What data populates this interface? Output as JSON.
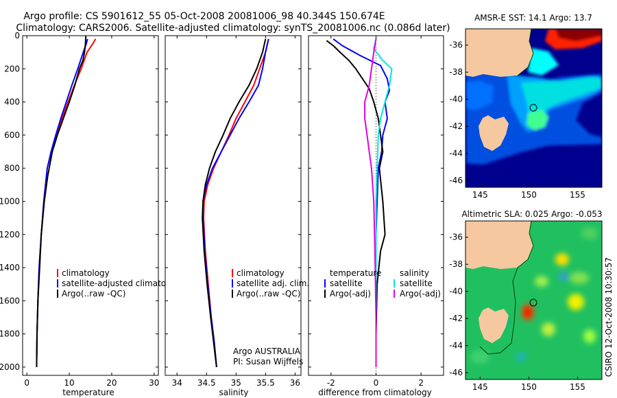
{
  "header": {
    "line1": "Argo profile: CS 5901612_55 05-Oct-2008 20081006_98 40.344S 150.674E",
    "line2": "Climatology: CARS2006. Satellite-adjusted climatology: synTS_20081006.nc (0.086d later)"
  },
  "colors": {
    "climatology": "#ff0000",
    "satellite": "#0000ff",
    "argo": "#000000",
    "salinity_satellite": "#00e5e5",
    "salinity_argo": "#e000e0",
    "land": "#f5c8a0"
  },
  "chart_data": [
    {
      "type": "line",
      "xlabel": "temperature",
      "ylabel": "",
      "xlim": [
        -1,
        31
      ],
      "ylim": [
        0,
        2050
      ],
      "y_reversed": true,
      "xticks": [
        "0",
        "10",
        "20",
        "30"
      ],
      "yticks": [
        "0",
        "200",
        "400",
        "600",
        "800",
        "1000",
        "1200",
        "1400",
        "1600",
        "1800",
        "2000"
      ],
      "legend": [
        "climatology",
        "satellite-adjusted climatology",
        "Argo(..raw -QC)"
      ],
      "series": [
        {
          "name": "climatology",
          "x": [
            16.2,
            15.5,
            14.2,
            12.8,
            11.2,
            9.7,
            8.3,
            6.9,
            5.8,
            4.8,
            4.0,
            3.4,
            2.9,
            2.6,
            2.4,
            2.3
          ],
          "y": [
            20,
            50,
            100,
            200,
            300,
            400,
            500,
            600,
            700,
            800,
            1000,
            1200,
            1400,
            1600,
            1800,
            2000
          ]
        },
        {
          "name": "satellite-adjusted climatology",
          "x": [
            14.3,
            14.0,
            13.3,
            12.0,
            10.6,
            9.3,
            8.0,
            6.8,
            5.7,
            4.8,
            4.0,
            3.4,
            2.9,
            2.6,
            2.4,
            2.3
          ],
          "y": [
            20,
            50,
            100,
            200,
            300,
            400,
            500,
            600,
            700,
            800,
            1000,
            1200,
            1400,
            1600,
            1800,
            2000
          ]
        },
        {
          "name": "Argo(..raw -QC)",
          "x": [
            13.9,
            13.8,
            13.6,
            13.2,
            12.4,
            11.3,
            10.0,
            8.6,
            7.2,
            6.0,
            4.9,
            4.1,
            3.4,
            3.0,
            2.6,
            2.4,
            2.3
          ],
          "y": [
            0,
            50,
            100,
            150,
            200,
            300,
            400,
            500,
            600,
            700,
            850,
            1000,
            1200,
            1400,
            1600,
            1800,
            2000
          ]
        }
      ]
    },
    {
      "type": "line",
      "xlabel": "salinity",
      "ylabel": "",
      "xlim": [
        33.8,
        36.1
      ],
      "ylim": [
        0,
        2050
      ],
      "y_reversed": true,
      "xticks": [
        "34",
        "34.5",
        "35",
        "35.5",
        "36"
      ],
      "legend": [
        "climatology",
        "satellite adj. clim.",
        "Argo(..raw -QC)"
      ],
      "annotation": [
        "Argo AUSTRALIA",
        "PI: Susan Wijffels"
      ],
      "series": [
        {
          "name": "climatology",
          "x": [
            35.55,
            35.5,
            35.4,
            35.3,
            35.15,
            35.0,
            34.88,
            34.75,
            34.62,
            34.52,
            34.46,
            34.45,
            34.48,
            34.53,
            34.58,
            34.63,
            34.67
          ],
          "y": [
            20,
            100,
            200,
            300,
            400,
            500,
            600,
            700,
            800,
            900,
            1000,
            1100,
            1300,
            1500,
            1700,
            1850,
            2000
          ]
        },
        {
          "name": "satellite adj. clim.",
          "x": [
            35.55,
            35.5,
            35.45,
            35.38,
            35.22,
            35.05,
            34.9,
            34.75,
            34.6,
            34.5,
            34.44,
            34.44,
            34.47,
            34.52,
            34.58,
            34.63,
            34.67
          ],
          "y": [
            20,
            100,
            200,
            300,
            400,
            500,
            600,
            700,
            800,
            900,
            1000,
            1100,
            1300,
            1500,
            1700,
            1850,
            2000
          ]
        },
        {
          "name": "Argo(..raw -QC)",
          "x": [
            35.5,
            35.45,
            35.35,
            35.22,
            35.05,
            34.9,
            34.78,
            34.65,
            34.55,
            34.48,
            34.44,
            34.43,
            34.46,
            34.51,
            34.57,
            34.62,
            34.67
          ],
          "y": [
            20,
            100,
            200,
            300,
            400,
            500,
            600,
            700,
            800,
            900,
            1000,
            1100,
            1300,
            1500,
            1700,
            1850,
            2000
          ]
        }
      ]
    },
    {
      "type": "line",
      "xlabel": "difference from climatology",
      "ylabel": "",
      "xlim": [
        -3,
        3
      ],
      "ylim": [
        0,
        2050
      ],
      "y_reversed": true,
      "xticks": [
        "-2",
        "0",
        "2"
      ],
      "legend_temperature_title": "temperature",
      "legend_salinity_title": "salinity",
      "legend_temperature": [
        "satellite",
        "Argo(-adj)"
      ],
      "legend_salinity": [
        "satellite",
        "Argo(-adj)"
      ],
      "series": [
        {
          "name": "temperature satellite",
          "x": [
            -1.9,
            -1.5,
            -0.7,
            0.2,
            0.5,
            0.6,
            0.4,
            0.5,
            0.3,
            0.25,
            0.1,
            0.05,
            0.0,
            0.0,
            0.0,
            0.0
          ],
          "y": [
            20,
            60,
            120,
            180,
            260,
            330,
            400,
            500,
            600,
            700,
            800,
            1000,
            1200,
            1500,
            1800,
            2000
          ]
        },
        {
          "name": "temperature Argo(-adj)",
          "x": [
            -2.2,
            -1.9,
            -1.6,
            -1.2,
            -0.9,
            -0.6,
            -0.3,
            -0.1,
            0.1,
            0.2,
            0.3,
            0.15,
            0.3,
            0.4,
            0.2,
            0.05,
            0.0,
            0.0
          ],
          "y": [
            30,
            60,
            100,
            150,
            200,
            260,
            320,
            400,
            500,
            600,
            700,
            800,
            1000,
            1200,
            1300,
            1500,
            1800,
            2000
          ]
        },
        {
          "name": "salinity satellite",
          "x": [
            0.0,
            -0.1,
            0.3,
            0.7,
            0.6,
            0.4,
            0.2,
            0.1,
            0.05,
            0.0,
            0.0,
            0.0,
            0.0
          ],
          "y": [
            20,
            80,
            150,
            200,
            300,
            400,
            500,
            600,
            800,
            1000,
            1300,
            1700,
            2000
          ]
        },
        {
          "name": "salinity Argo(-adj)",
          "x": [
            0.0,
            -0.1,
            -0.2,
            -0.3,
            -0.5,
            -0.5,
            -0.4,
            -0.3,
            -0.2,
            -0.1,
            -0.05,
            0.0,
            0.0
          ],
          "y": [
            20,
            100,
            200,
            300,
            400,
            500,
            600,
            700,
            800,
            1000,
            1300,
            1700,
            2000
          ]
        }
      ]
    }
  ],
  "maps": [
    {
      "title": "AMSR-E SST: 14.1 Argo: 13.7",
      "xticks": [
        "145",
        "150",
        "155"
      ],
      "yticks": [
        "-36",
        "-38",
        "-40",
        "-42",
        "-44",
        "-46"
      ],
      "argo_position": {
        "lon": 150.674,
        "lat": -40.344
      }
    },
    {
      "title": "Altimetric SLA: 0.025 Argo: -0.053",
      "xticks": [
        "145",
        "150",
        "155"
      ],
      "yticks": [
        "-36",
        "-38",
        "-40",
        "-42",
        "-44",
        "-46"
      ],
      "argo_position": {
        "lon": 150.674,
        "lat": -40.344
      }
    }
  ],
  "footer": {
    "stamp": "CSIRO 12-Oct-2008 10:30:57"
  }
}
